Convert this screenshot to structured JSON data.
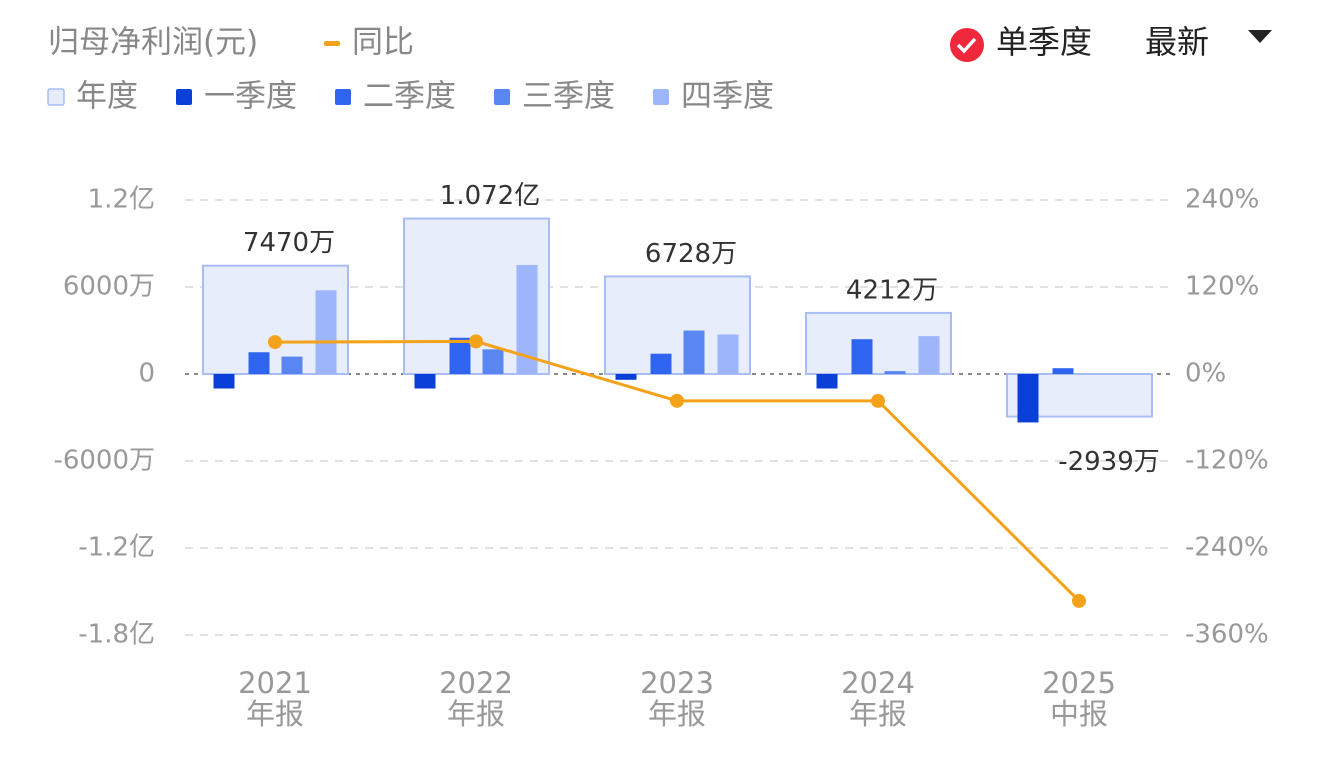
{
  "chart_data": {
    "type": "bar",
    "title": "归母净利润(元)",
    "controls": {
      "single_quarter": "单季度",
      "latest": "最新"
    },
    "categories": [
      [
        "2021",
        "年报"
      ],
      [
        "2022",
        "年报"
      ],
      [
        "2023",
        "年报"
      ],
      [
        "2024",
        "年报"
      ],
      [
        "2025",
        "中报"
      ]
    ],
    "series": [
      {
        "name": "年度",
        "color": "#e8edfb",
        "values": [
          74700000,
          107200000,
          67280000,
          42120000,
          -29390000
        ],
        "value_labels": [
          "7470万",
          "1.072亿",
          "6728万",
          "4212万",
          "-2939万"
        ]
      },
      {
        "name": "一季度",
        "color": "#0a3fd8",
        "values": [
          -10000000,
          -10000000,
          -4000000,
          -10000000,
          -33400000
        ]
      },
      {
        "name": "二季度",
        "color": "#2f64f0",
        "values": [
          15000000,
          25000000,
          14000000,
          24000000,
          4000000
        ]
      },
      {
        "name": "三季度",
        "color": "#5a86f2",
        "values": [
          12000000,
          17000000,
          30000000,
          2000000,
          null
        ]
      },
      {
        "name": "四季度",
        "color": "#9db5fa",
        "values": [
          57700000,
          75200000,
          27280000,
          26120000,
          null
        ]
      },
      {
        "name": "同比",
        "color": "#f5a21b",
        "type": "line",
        "axis": "y2",
        "values": [
          44,
          45,
          -37,
          -37,
          -313
        ]
      }
    ],
    "ylim": [
      -180000000,
      120000000
    ],
    "yticks": [
      {
        "value": -180000000,
        "label": "-1.8亿"
      },
      {
        "value": -120000000,
        "label": "-1.2亿"
      },
      {
        "value": -60000000,
        "label": "-6000万"
      },
      0,
      {
        "value": 60000000,
        "label": "6000万"
      },
      {
        "value": 120000000,
        "label": "1.2亿"
      }
    ],
    "y2lim": [
      -360,
      240
    ],
    "y2ticks": [
      {
        "value": -360,
        "label": "-360%"
      },
      {
        "value": -240,
        "label": "-240%"
      },
      {
        "value": -120,
        "label": "-120%"
      },
      {
        "value": 0,
        "label": "0%"
      },
      {
        "value": 120,
        "label": "120%"
      },
      {
        "value": 240,
        "label": "240%"
      }
    ],
    "grid": true
  }
}
